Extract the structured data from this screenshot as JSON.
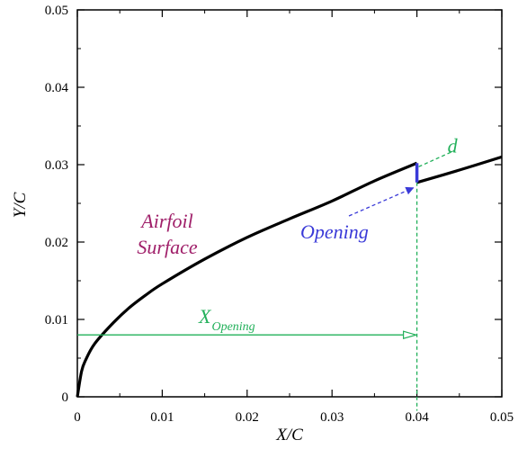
{
  "chart_data": {
    "type": "line",
    "title": "",
    "xlabel": "X/C",
    "ylabel": "Y/C",
    "xlim": [
      0,
      0.05
    ],
    "ylim": [
      0,
      0.05
    ],
    "x_ticks": [
      "0",
      "0.01",
      "0.02",
      "0.03",
      "0.04",
      "0.05"
    ],
    "y_ticks": [
      "0",
      "0.01",
      "0.02",
      "0.03",
      "0.04",
      "0.05"
    ],
    "grid": false,
    "series": [
      {
        "name": "",
        "color": "#000000",
        "x": [
          0,
          0.0005,
          0.001,
          0.002,
          0.004,
          0.006,
          0.008,
          0.01,
          0.015,
          0.02,
          0.025,
          0.03,
          0.035,
          0.04
        ],
        "y": [
          0,
          0.0033,
          0.0048,
          0.0068,
          0.0093,
          0.0114,
          0.0131,
          0.0146,
          0.0178,
          0.0206,
          0.023,
          0.0253,
          0.0279,
          0.0302
        ]
      },
      {
        "name": "",
        "color": "#000000",
        "x": [
          0.04,
          0.045,
          0.05
        ],
        "y": [
          0.0277,
          0.0293,
          0.031
        ]
      }
    ],
    "annotations": {
      "airfoil_line1": "Airfoil",
      "airfoil_line2": "Surface",
      "airfoil_color": "#a0206a",
      "opening_label": "Opening",
      "opening_color": "#3a3ad8",
      "opening_x": 0.04,
      "opening_y_bottom": 0.0277,
      "opening_y_top": 0.0302,
      "d_label": "d",
      "x_opening_main": "X",
      "x_opening_sub": "Opening",
      "guide_color": "#22b05a",
      "x_opening_arrow_y": 0.008
    }
  }
}
